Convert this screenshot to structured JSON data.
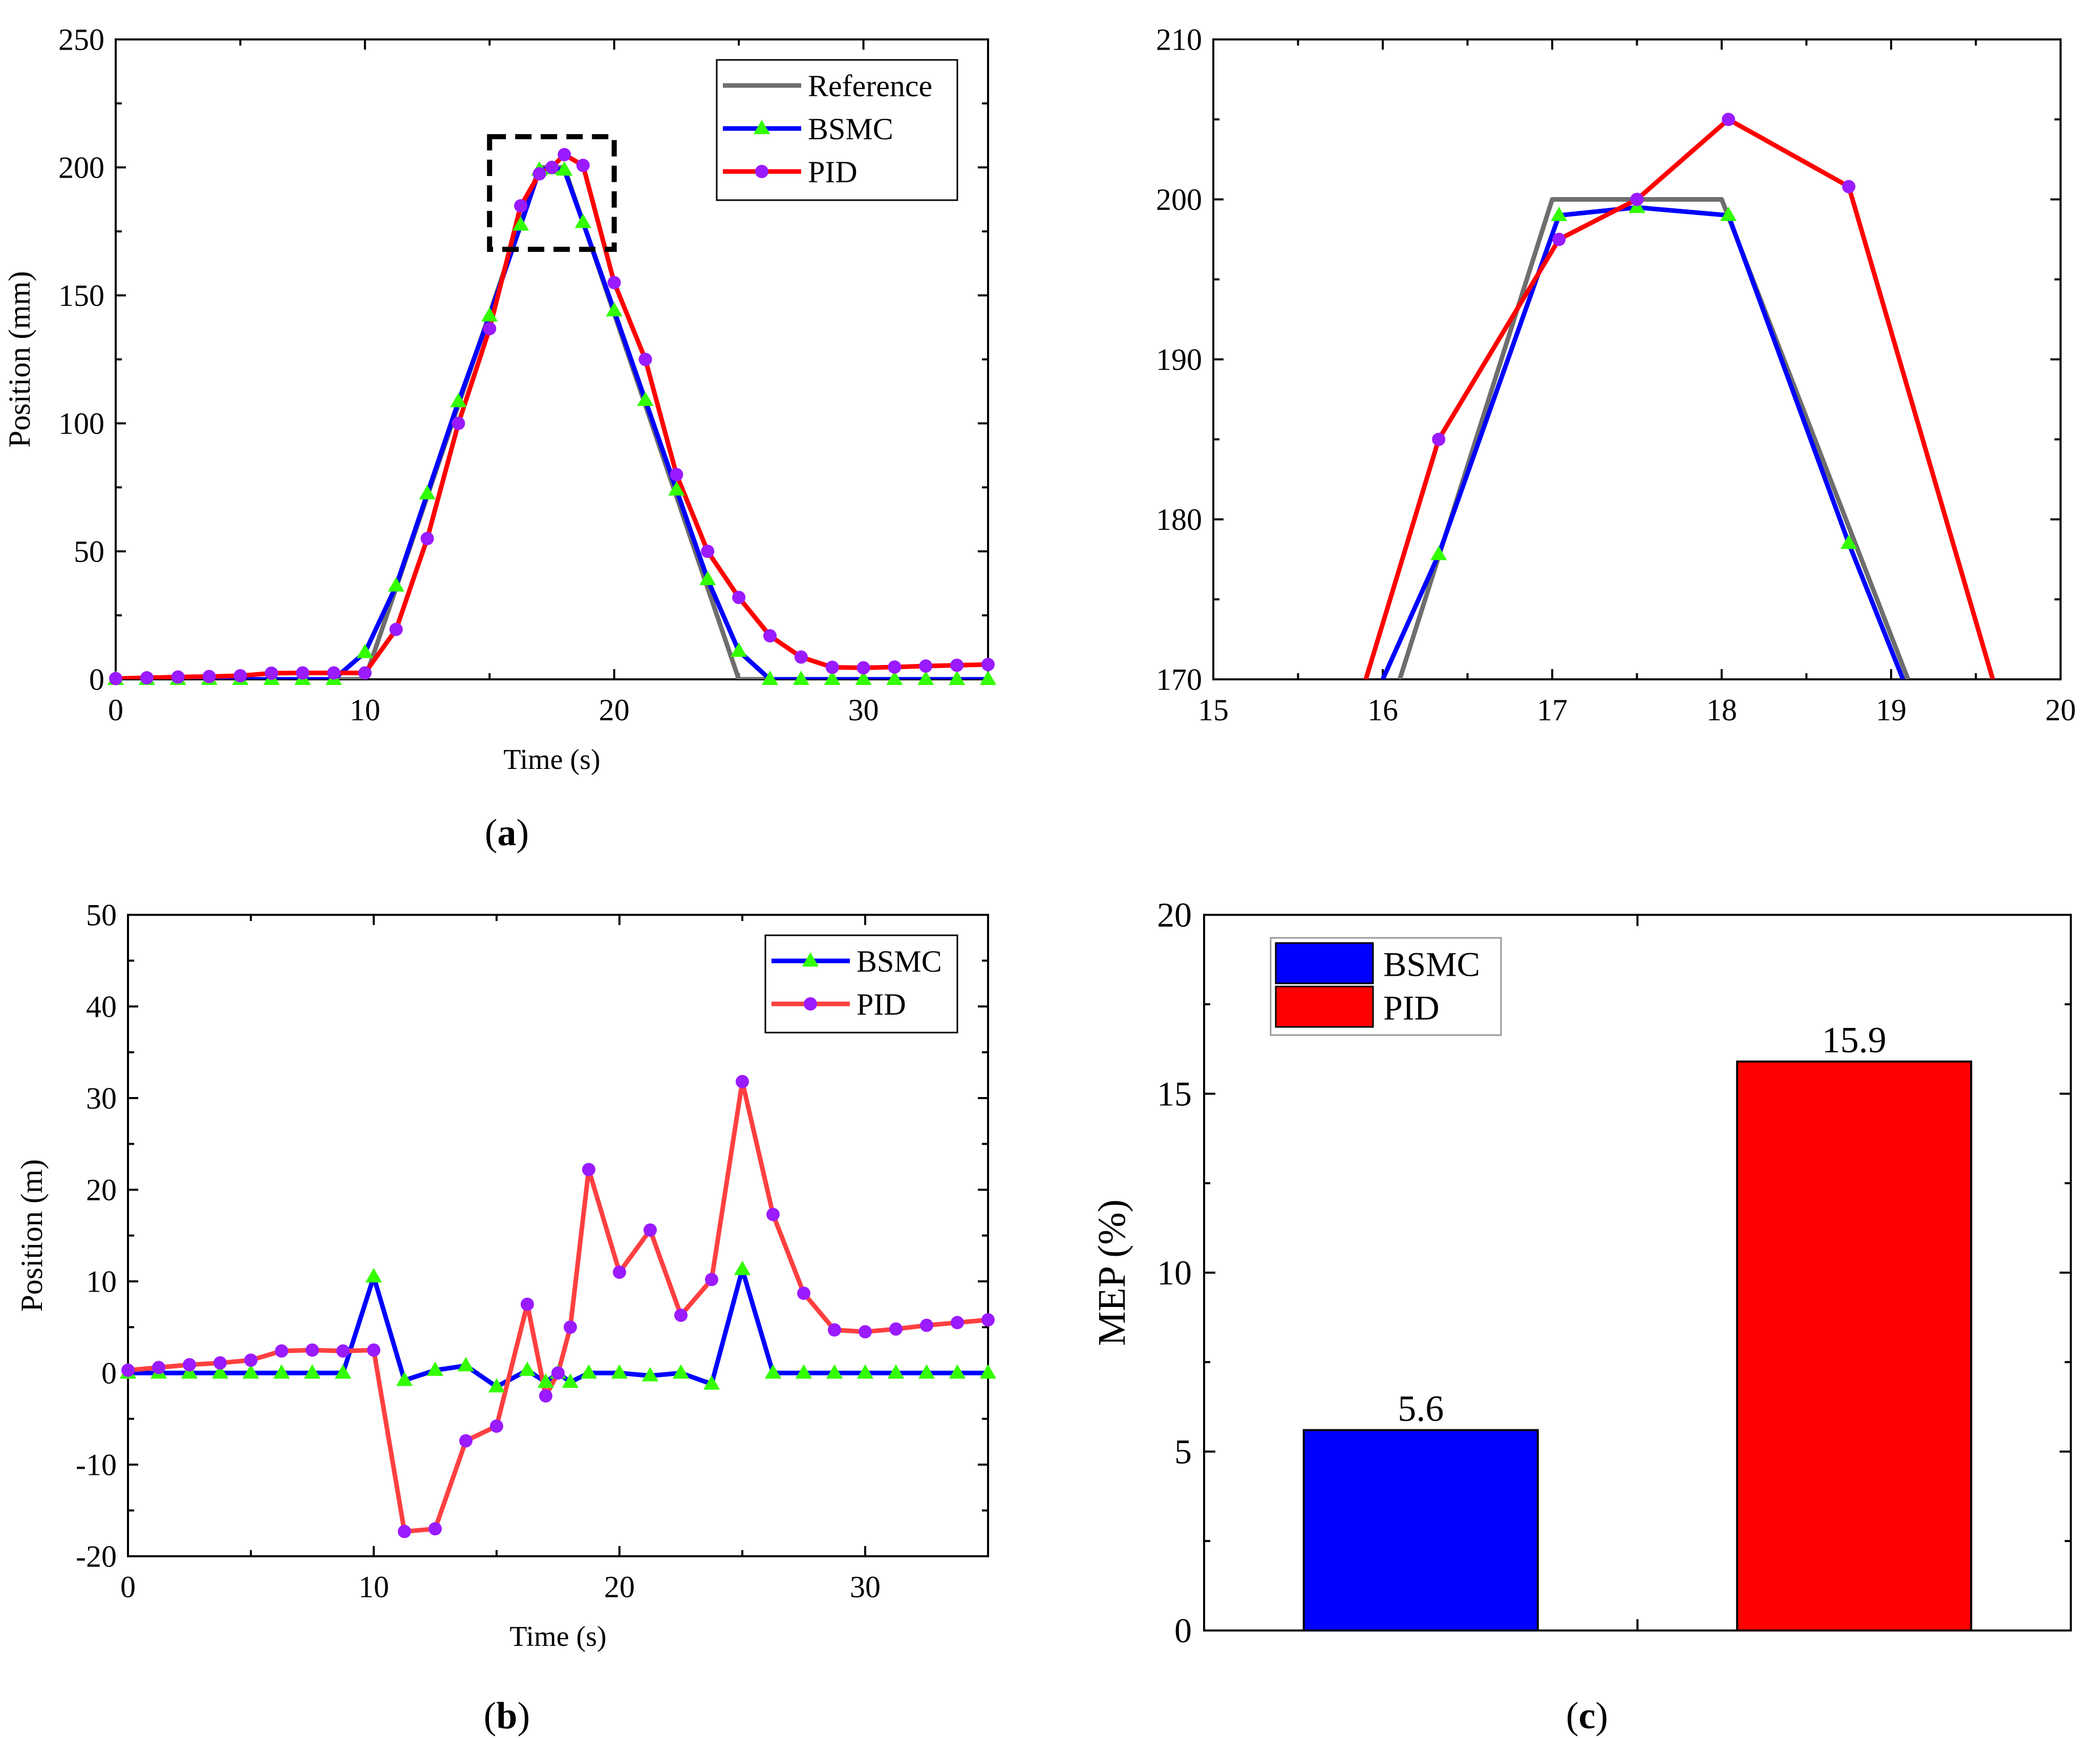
{
  "captions": {
    "a": {
      "open": "(",
      "letter": "a",
      "close": ")"
    },
    "b": {
      "open": "(",
      "letter": "b",
      "close": ")"
    },
    "c": {
      "open": "(",
      "letter": "c",
      "close": ")"
    }
  },
  "colors": {
    "reference": "#6e6e6e",
    "bsmc": "#0000ff",
    "pid": "#ff0000",
    "pid_error": "#ff4040",
    "bsmc_marker": "#33ff00",
    "pid_marker": "#9a1bff",
    "box": "#000000"
  },
  "chart_data": [
    {
      "id": "a",
      "type": "line",
      "title": "",
      "xlabel": "Time (s)",
      "ylabel": "Position (mm)",
      "xlim": [
        0,
        35
      ],
      "ylim": [
        0,
        250
      ],
      "xticks": [
        0,
        10,
        20,
        30
      ],
      "yticks": [
        0,
        50,
        100,
        150,
        200,
        250
      ],
      "legend": "top-right",
      "zoom_box": {
        "x": [
          15,
          20
        ],
        "y": [
          168,
          212
        ]
      },
      "series": [
        {
          "name": "Reference",
          "color_key": "reference",
          "marker": "none",
          "x": [
            0,
            10,
            17,
            18,
            25,
            35
          ],
          "y": [
            0,
            0,
            200,
            200,
            0,
            0
          ]
        },
        {
          "name": "BSMC",
          "color_key": "bsmc",
          "marker": "triangle",
          "marker_color_key": "bsmc_marker",
          "x": [
            0,
            1.25,
            2.5,
            3.75,
            5,
            6.25,
            7.5,
            8.75,
            10,
            11.25,
            12.5,
            13.75,
            15,
            16.25,
            17,
            17.5,
            18,
            18.75,
            20,
            21.25,
            22.5,
            23.75,
            25,
            26.25,
            27.5,
            28.75,
            30,
            31.25,
            32.5,
            33.75,
            35
          ],
          "y": [
            0,
            0,
            0,
            0,
            0,
            0,
            0,
            0,
            10.5,
            36.5,
            72.5,
            108.5,
            142,
            177.5,
            199,
            199.5,
            199,
            178.5,
            144,
            109,
            74,
            39,
            11,
            0,
            0,
            0,
            0,
            0,
            0,
            0,
            0
          ]
        },
        {
          "name": "PID",
          "color_key": "pid",
          "marker": "circle",
          "marker_color_key": "pid_marker",
          "x": [
            0,
            1.25,
            2.5,
            3.75,
            5,
            6.25,
            7.5,
            8.75,
            10,
            11.25,
            12.5,
            13.75,
            15,
            16.25,
            17,
            17.5,
            18,
            18.75,
            20,
            21.25,
            22.5,
            23.75,
            25,
            26.25,
            27.5,
            28.75,
            30,
            31.25,
            32.5,
            33.75,
            35
          ],
          "y": [
            0.3,
            0.6,
            0.9,
            1.1,
            1.4,
            2.4,
            2.5,
            2.5,
            2.5,
            19.5,
            55,
            100,
            137,
            185,
            197.5,
            200,
            205,
            200.8,
            155,
            125,
            80,
            50,
            32,
            17,
            8.7,
            4.7,
            4.5,
            4.8,
            5.2,
            5.5,
            5.8
          ]
        }
      ]
    },
    {
      "id": "a-zoom",
      "type": "line",
      "title": "",
      "xlabel": "",
      "ylabel": "",
      "xlim": [
        15,
        20
      ],
      "ylim": [
        170,
        210
      ],
      "xticks": [
        15,
        16,
        17,
        18,
        19,
        20
      ],
      "yticks": [
        170,
        180,
        190,
        200,
        210
      ],
      "series": [
        {
          "name": "Reference",
          "color_key": "reference",
          "marker": "none",
          "x": [
            16.1,
            17.0,
            18.0,
            19.1
          ],
          "y": [
            170,
            200,
            200,
            170
          ]
        },
        {
          "name": "BSMC",
          "color_key": "bsmc",
          "marker": "triangle",
          "marker_color_key": "bsmc_marker",
          "x": [
            16.0,
            16.33,
            17.04,
            17.5,
            18.04,
            18.75,
            19.07
          ],
          "y": [
            170,
            177.8,
            199,
            199.5,
            199,
            178.5,
            170
          ]
        },
        {
          "name": "PID",
          "color_key": "pid",
          "marker": "circle",
          "marker_color_key": "pid_marker",
          "x": [
            15.9,
            16.33,
            17.04,
            17.5,
            18.04,
            18.75,
            19.6
          ],
          "y": [
            170,
            185,
            197.5,
            200,
            205,
            200.8,
            170
          ]
        }
      ],
      "marker_x_min": 16.2,
      "marker_x_max": 19.0
    },
    {
      "id": "b",
      "type": "line",
      "title": "",
      "xlabel": "Time (s)",
      "ylabel": "Position (m)",
      "xlim": [
        0,
        35
      ],
      "ylim": [
        -20,
        50
      ],
      "xticks": [
        0,
        10,
        20,
        30
      ],
      "yticks": [
        -20,
        -10,
        0,
        10,
        20,
        30,
        40,
        50
      ],
      "legend": "top-right",
      "series": [
        {
          "name": "BSMC",
          "color_key": "bsmc",
          "marker": "triangle",
          "marker_color_key": "bsmc_marker",
          "x": [
            0,
            1.25,
            2.5,
            3.75,
            5,
            6.25,
            7.5,
            8.75,
            10,
            11.25,
            12.5,
            13.75,
            15,
            16.25,
            17,
            17.5,
            18,
            18.75,
            20,
            21.25,
            22.5,
            23.75,
            25,
            26.25,
            27.5,
            28.75,
            30,
            31.25,
            32.5,
            33.75,
            35
          ],
          "y": [
            0,
            0,
            0,
            0,
            0,
            0,
            0,
            0,
            10.5,
            -0.8,
            0.3,
            0.8,
            -1.5,
            0.3,
            -1,
            0,
            -1,
            0,
            0,
            -0.3,
            0,
            -1.2,
            11.3,
            0,
            0,
            0,
            0,
            0,
            0,
            0,
            0
          ]
        },
        {
          "name": "PID",
          "color_key": "pid_error",
          "marker": "circle",
          "marker_color_key": "pid_marker",
          "x": [
            0,
            1.25,
            2.5,
            3.75,
            5,
            6.25,
            7.5,
            8.75,
            10,
            11.25,
            12.5,
            13.75,
            15,
            16.25,
            17,
            17.5,
            18,
            18.75,
            20,
            21.25,
            22.5,
            23.75,
            25,
            26.25,
            27.5,
            28.75,
            30,
            31.25,
            32.5,
            33.75,
            35
          ],
          "y": [
            0.3,
            0.6,
            0.9,
            1.1,
            1.4,
            2.4,
            2.5,
            2.4,
            2.5,
            -17.3,
            -17,
            -7.4,
            -5.8,
            7.5,
            -2.5,
            0,
            5,
            22.2,
            11,
            15.6,
            6.3,
            10.2,
            31.8,
            17.3,
            8.7,
            4.7,
            4.5,
            4.8,
            5.2,
            5.5,
            5.8
          ]
        }
      ]
    },
    {
      "id": "c",
      "type": "bar",
      "title": "",
      "xlabel": "",
      "ylabel": "MEP (%)",
      "ylim": [
        0,
        20
      ],
      "yticks": [
        0,
        5,
        10,
        15,
        20
      ],
      "categories": [
        "BSMC",
        "PID"
      ],
      "values": [
        5.6,
        15.9
      ],
      "data_labels": [
        "5.6",
        "15.9"
      ],
      "color_keys": [
        "bsmc",
        "pid"
      ],
      "legend": "top-left"
    }
  ]
}
